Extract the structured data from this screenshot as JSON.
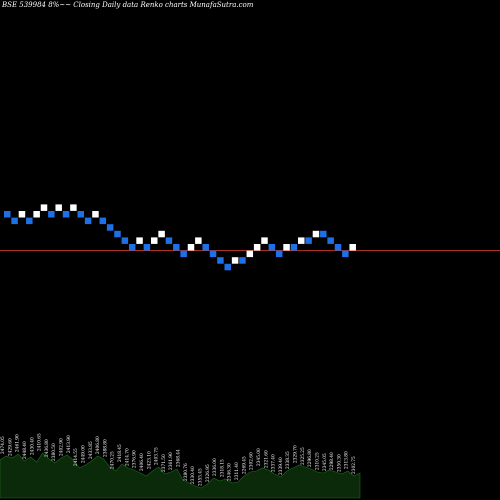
{
  "header": {
    "title": "BSE 539984  8%~~ Closing Daily data  Renko  charts MunafaSutra.com"
  },
  "colors": {
    "background": "#000000",
    "up_brick": "#ffffff",
    "down_brick": "#1f6fe6",
    "reference_line": "#c0392b",
    "volume_fill": "#0a2a0a",
    "volume_stroke": "#1d6b1d"
  },
  "chart_data": {
    "type": "renko",
    "title": "BSE 539984  8%~~ Closing Daily data  Renko  charts MunafaSutra.com",
    "bricks": [
      {
        "dir": "down",
        "level": 0
      },
      {
        "dir": "down",
        "level": -1
      },
      {
        "dir": "up",
        "level": 0
      },
      {
        "dir": "down",
        "level": -1
      },
      {
        "dir": "up",
        "level": 0
      },
      {
        "dir": "up",
        "level": 1
      },
      {
        "dir": "down",
        "level": 0
      },
      {
        "dir": "up",
        "level": 1
      },
      {
        "dir": "down",
        "level": 0
      },
      {
        "dir": "up",
        "level": 1
      },
      {
        "dir": "down",
        "level": 0
      },
      {
        "dir": "down",
        "level": -1
      },
      {
        "dir": "up",
        "level": 0
      },
      {
        "dir": "down",
        "level": -1
      },
      {
        "dir": "down",
        "level": -2
      },
      {
        "dir": "down",
        "level": -3
      },
      {
        "dir": "down",
        "level": -4
      },
      {
        "dir": "down",
        "level": -5
      },
      {
        "dir": "up",
        "level": -4
      },
      {
        "dir": "down",
        "level": -5
      },
      {
        "dir": "up",
        "level": -4
      },
      {
        "dir": "up",
        "level": -3
      },
      {
        "dir": "down",
        "level": -4
      },
      {
        "dir": "down",
        "level": -5
      },
      {
        "dir": "down",
        "level": -6
      },
      {
        "dir": "up",
        "level": -5
      },
      {
        "dir": "up",
        "level": -4
      },
      {
        "dir": "down",
        "level": -5
      },
      {
        "dir": "down",
        "level": -6
      },
      {
        "dir": "down",
        "level": -7
      },
      {
        "dir": "down",
        "level": -8
      },
      {
        "dir": "up",
        "level": -7
      },
      {
        "dir": "down",
        "level": -7
      },
      {
        "dir": "up",
        "level": -6
      },
      {
        "dir": "up",
        "level": -5
      },
      {
        "dir": "up",
        "level": -4
      },
      {
        "dir": "down",
        "level": -5
      },
      {
        "dir": "down",
        "level": -6
      },
      {
        "dir": "up",
        "level": -5
      },
      {
        "dir": "down",
        "level": -5
      },
      {
        "dir": "up",
        "level": -4
      },
      {
        "dir": "down",
        "level": -4
      },
      {
        "dir": "up",
        "level": -3
      },
      {
        "dir": "down",
        "level": -3
      },
      {
        "dir": "down",
        "level": -4
      },
      {
        "dir": "down",
        "level": -5
      },
      {
        "dir": "down",
        "level": -6
      },
      {
        "dir": "up",
        "level": -5
      }
    ],
    "reference_level": -5.5,
    "volume_labels": [
      "2474.05",
      "2429.60",
      "2461.90",
      "2448.40",
      "2430.40",
      "2410.65",
      "2436.80",
      "2380.50",
      "2402.90",
      "2413.90",
      "2414.55",
      "2449.00",
      "2433.85",
      "2406.80",
      "2388.80",
      "2470.25",
      "2418.45",
      "2414.70",
      "2376.90",
      "2406.40",
      "2423.10",
      "2403.75",
      "2371.50",
      "2361.90",
      "2368.44",
      "2380.76",
      "2330.40",
      "2355.45",
      "2326.95",
      "2336.00",
      "2318.15",
      "2346.30",
      "2311.40",
      "2269.45",
      "2302.60",
      "2345.00",
      "2321.60",
      "2337.40",
      "2339.40",
      "2338.35",
      "2329.70",
      "2325.25",
      "2296.80",
      "2310.25",
      "2345.05",
      "2298.40",
      "2350.30",
      "2313.80",
      "2302.75"
    ],
    "volume_heights": [
      38,
      42,
      40,
      44,
      37,
      41,
      36,
      45,
      39,
      35,
      40,
      43,
      38,
      30,
      33,
      37,
      42,
      39,
      31,
      27,
      34,
      30,
      28,
      25,
      22,
      27,
      31,
      24,
      26,
      29,
      18,
      15,
      12,
      10,
      14,
      20,
      17,
      19,
      15,
      16,
      22,
      26,
      27,
      30,
      28,
      24,
      21,
      27,
      30,
      33,
      31,
      29,
      26,
      25,
      28,
      26,
      24,
      27,
      22,
      25
    ]
  }
}
